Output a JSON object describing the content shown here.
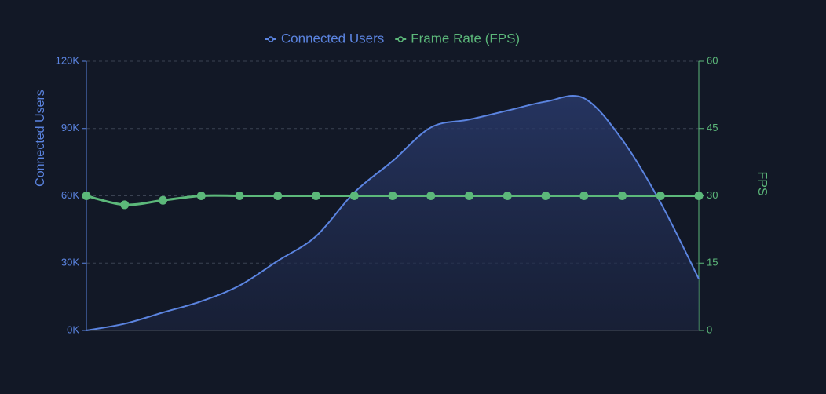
{
  "chart_data": {
    "type": "line",
    "categories": [
      null,
      null,
      null,
      null,
      null,
      null,
      null,
      null,
      null,
      null,
      null,
      null,
      null,
      null,
      null,
      null,
      null
    ],
    "series": [
      {
        "name": "Connected Users",
        "color": "#5b84e0",
        "area": true,
        "values": [
          0,
          3000,
          8000,
          13000,
          20000,
          31000,
          42000,
          61500,
          75500,
          90500,
          94000,
          98000,
          102000,
          103500,
          85000,
          57000,
          23000
        ]
      },
      {
        "name": "Frame Rate (FPS)",
        "color": "#5cb87a",
        "axis": "y2",
        "markers": true,
        "values": [
          30,
          28,
          29,
          30,
          30,
          30,
          30,
          30,
          30,
          30,
          30,
          30,
          30,
          30,
          30,
          30,
          30
        ]
      }
    ],
    "ylabel": "Connected Users",
    "y2label": "FPS",
    "ylim": [
      0,
      120000
    ],
    "yticks": [
      {
        "value": 0,
        "label": "0K"
      },
      {
        "value": 30000,
        "label": "30K"
      },
      {
        "value": 60000,
        "label": "60K"
      },
      {
        "value": 90000,
        "label": "90K"
      },
      {
        "value": 120000,
        "label": "120K"
      }
    ],
    "y2lim": [
      0,
      60
    ],
    "y2ticks": [
      0,
      15,
      30,
      45,
      60
    ],
    "grid": true,
    "legend": "top"
  }
}
